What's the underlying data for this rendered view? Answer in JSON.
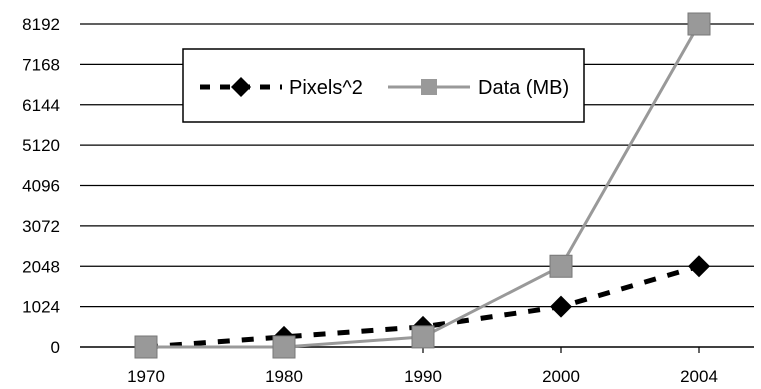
{
  "chart_data": {
    "type": "line",
    "title": "",
    "xlabel": "",
    "ylabel": "",
    "categories": [
      "1970",
      "1980",
      "1990",
      "2000",
      "2004"
    ],
    "x": [
      1970,
      1980,
      1990,
      2000,
      2004
    ],
    "ylim": [
      0,
      8192
    ],
    "yticks": [
      "0",
      "1024",
      "2048",
      "3072",
      "4096",
      "5120",
      "6144",
      "7168",
      "8192"
    ],
    "grid": "horizontal",
    "legend_placement": "top-left",
    "series": [
      {
        "name": "Pixels^2",
        "values": [
          0,
          256,
          512,
          1024,
          2048
        ],
        "line_style": "dashed",
        "marker": "diamond",
        "color": "#000000"
      },
      {
        "name": "Data (MB)",
        "values": [
          0,
          0,
          256,
          2048,
          8192
        ],
        "line_style": "solid",
        "marker": "square",
        "color": "#999999"
      }
    ]
  }
}
